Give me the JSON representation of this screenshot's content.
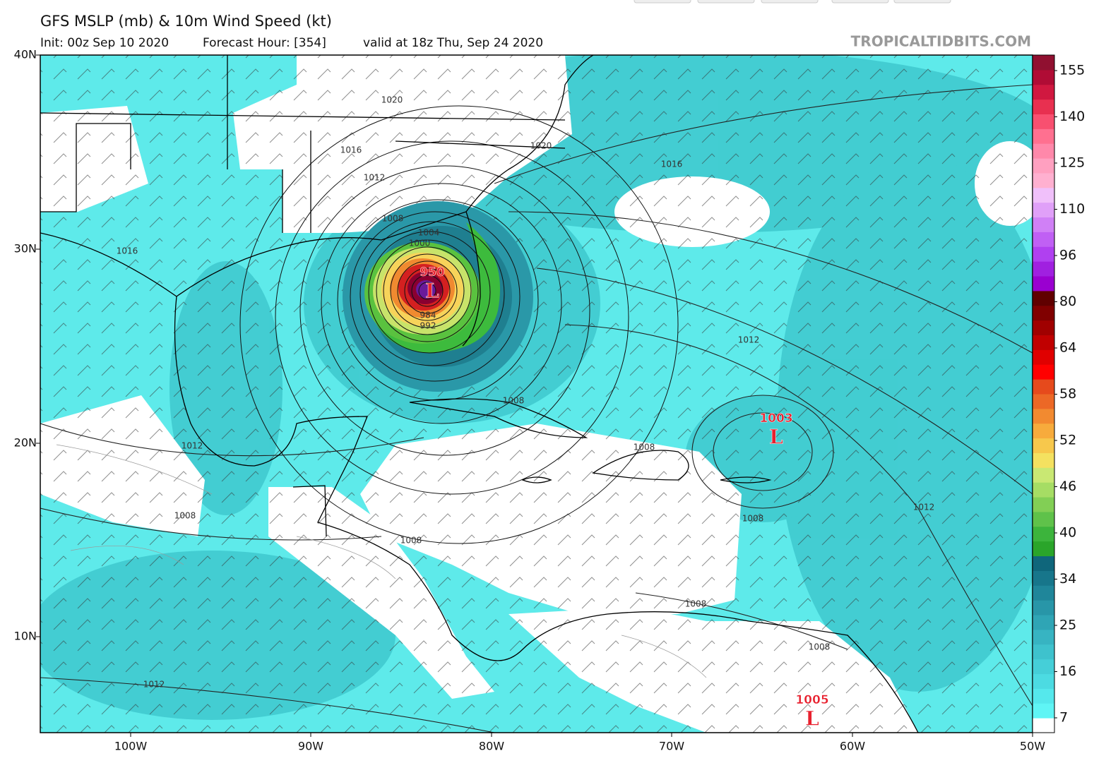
{
  "header": {
    "title": "GFS MSLP (mb) & 10m Wind Speed (kt)",
    "init": "Init: 00z Sep 10 2020",
    "forecast_hour": "Forecast Hour: [354]",
    "valid": "valid at 18z Thu, Sep 24 2020",
    "site": "TROPICALTIDBITS.COM"
  },
  "map": {
    "lat_labels": [
      "40N",
      "30N",
      "20N",
      "10N"
    ],
    "lon_labels": [
      "100W",
      "90W",
      "80W",
      "70W",
      "60W",
      "50W"
    ],
    "isobar_labels": [
      "1020",
      "1020",
      "1016",
      "1016",
      "1016",
      "1012",
      "1012",
      "1012",
      "1012",
      "1012",
      "1008",
      "1008",
      "1008",
      "1008",
      "1008",
      "1008",
      "1008",
      "1008",
      "1004",
      "1000",
      "984",
      "992"
    ],
    "lows": [
      {
        "pressure": "950",
        "symbol": "L"
      },
      {
        "pressure": "1003",
        "symbol": "L"
      },
      {
        "pressure": "1005",
        "symbol": "L"
      }
    ]
  },
  "colorbar": {
    "ticks": [
      "155",
      "140",
      "125",
      "110",
      "96",
      "80",
      "64",
      "58",
      "52",
      "46",
      "40",
      "34",
      "25",
      "16",
      "7"
    ]
  }
}
